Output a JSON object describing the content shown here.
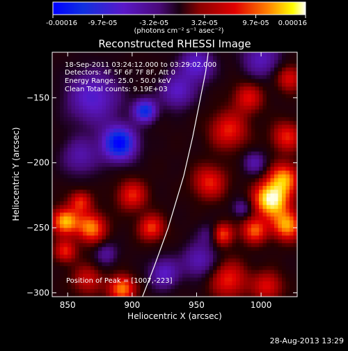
{
  "colorbar": {
    "tick_labels": [
      "-0.00016",
      "-9.7e-05",
      "-3.2e-05",
      "3.2e-05",
      "9.7e-05",
      "0.00016"
    ],
    "unit_label": "(photons cm⁻² s⁻¹ asec⁻²)",
    "range": [
      -0.00016,
      0.00016
    ]
  },
  "chart_data": {
    "type": "heatmap",
    "title": "Reconstructed RHESSI Image",
    "xlabel": "Heliocentric X (arcsec)",
    "ylabel": "Heliocentric Y (arcsec)",
    "xlim": [
      838,
      1028
    ],
    "ylim": [
      -303,
      -115
    ],
    "x_ticks": [
      850,
      900,
      950,
      1000
    ],
    "y_ticks": [
      -300,
      -250,
      -200,
      -150
    ],
    "annotations": {
      "time": "18-Sep-2011 03:24:12.000 to 03:29:02.000",
      "detectors": "Detectors: 4F 5F 6F 7F 8F, Att 0",
      "energy": "Energy Range: 25.0 - 50.0 keV",
      "clean": "Clean    Total counts: 9.19E+03",
      "peak": "Position of Peak = [1007,-223]"
    },
    "limb_curve": [
      [
        908,
        -303
      ],
      [
        917,
        -280
      ],
      [
        928,
        -250
      ],
      [
        940,
        -210
      ],
      [
        947,
        -180
      ],
      [
        953,
        -150
      ],
      [
        957,
        -130
      ],
      [
        959,
        -115
      ]
    ],
    "field_features": [
      {
        "x": 890,
        "y": -185,
        "sigma": 9,
        "amp": -1.0
      },
      {
        "x": 910,
        "y": -160,
        "sigma": 6,
        "amp": -0.8
      },
      {
        "x": 870,
        "y": -150,
        "sigma": 14,
        "amp": -0.5
      },
      {
        "x": 935,
        "y": -145,
        "sigma": 9,
        "amp": -0.45
      },
      {
        "x": 950,
        "y": -125,
        "sigma": 9,
        "amp": -0.5
      },
      {
        "x": 1000,
        "y": -120,
        "sigma": 10,
        "amp": -0.4
      },
      {
        "x": 860,
        "y": -195,
        "sigma": 10,
        "amp": -0.35
      },
      {
        "x": 1008,
        "y": -228,
        "sigma": 9,
        "amp": 1.0
      },
      {
        "x": 1018,
        "y": -212,
        "sigma": 8,
        "amp": 0.65
      },
      {
        "x": 1020,
        "y": -248,
        "sigma": 8,
        "amp": 0.7
      },
      {
        "x": 995,
        "y": -252,
        "sigma": 7,
        "amp": 0.55
      },
      {
        "x": 1020,
        "y": -180,
        "sigma": 8,
        "amp": 0.45
      },
      {
        "x": 970,
        "y": -255,
        "sigma": 6,
        "amp": 0.55
      },
      {
        "x": 960,
        "y": -215,
        "sigma": 9,
        "amp": 0.45
      },
      {
        "x": 975,
        "y": -175,
        "sigma": 10,
        "amp": 0.45
      },
      {
        "x": 990,
        "y": -150,
        "sigma": 8,
        "amp": 0.4
      },
      {
        "x": 975,
        "y": -290,
        "sigma": 10,
        "amp": 0.45
      },
      {
        "x": 1005,
        "y": -295,
        "sigma": 8,
        "amp": 0.4
      },
      {
        "x": 848,
        "y": -245,
        "sigma": 7,
        "amp": 0.75
      },
      {
        "x": 868,
        "y": -250,
        "sigma": 8,
        "amp": 0.65
      },
      {
        "x": 860,
        "y": -230,
        "sigma": 6,
        "amp": 0.45
      },
      {
        "x": 848,
        "y": -268,
        "sigma": 6,
        "amp": 0.45
      },
      {
        "x": 915,
        "y": -250,
        "sigma": 7,
        "amp": 0.5
      },
      {
        "x": 900,
        "y": -225,
        "sigma": 8,
        "amp": 0.45
      },
      {
        "x": 892,
        "y": -297,
        "sigma": 7,
        "amp": 0.65
      },
      {
        "x": 865,
        "y": -290,
        "sigma": 8,
        "amp": 0.35
      },
      {
        "x": 925,
        "y": -285,
        "sigma": 8,
        "amp": -0.45
      },
      {
        "x": 952,
        "y": -275,
        "sigma": 9,
        "amp": -0.4
      },
      {
        "x": 960,
        "y": -255,
        "sigma": 6,
        "amp": -0.25
      },
      {
        "x": 995,
        "y": -200,
        "sigma": 6,
        "amp": -0.35
      },
      {
        "x": 985,
        "y": -235,
        "sigma": 5,
        "amp": -0.3
      },
      {
        "x": 880,
        "y": -270,
        "sigma": 6,
        "amp": -0.3
      },
      {
        "x": 1022,
        "y": -135,
        "sigma": 7,
        "amp": 0.4
      }
    ]
  },
  "footer": {
    "timestamp": "28-Aug-2013 13:29"
  }
}
